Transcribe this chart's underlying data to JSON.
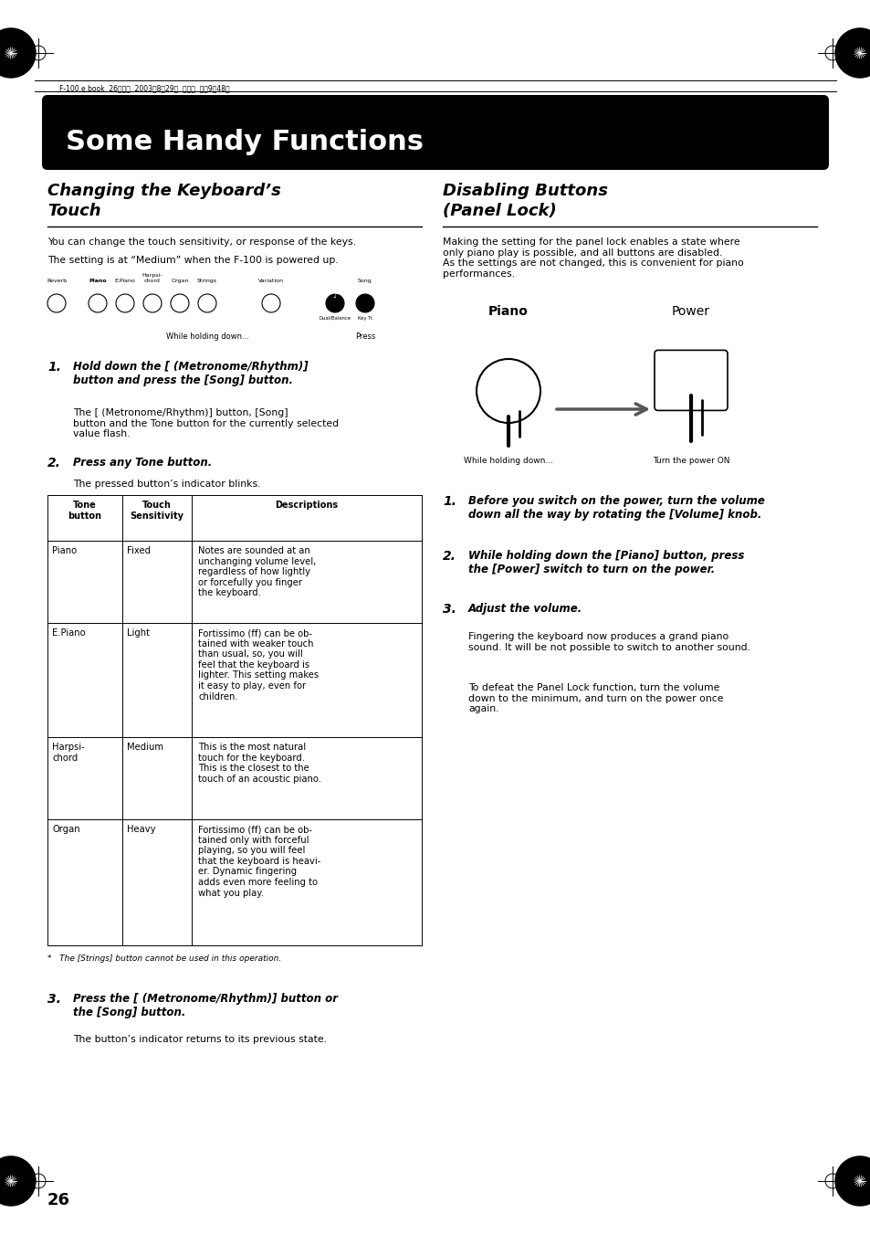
{
  "bg_color": "#ffffff",
  "title_bar_color": "#000000",
  "title_bar_text": "Some Handy Functions",
  "title_bar_text_color": "#ffffff",
  "section1_title_line1": "Changing the Keyboard’s",
  "section1_title_line2": "Touch",
  "section2_title_line1": "Disabling Buttons",
  "section2_title_line2": "(Panel Lock)",
  "header_text": "F-100.e.book  26ページ  2003年8月29日  金曜日  午前9晈48分",
  "page_number": "26",
  "section1_intro1": "You can change the touch sensitivity, or response of the keys.",
  "section1_intro2": "The setting is at “Medium” when the F-100 is powered up.",
  "step1_head": "Hold down the [  (Metronome/Rhythm)]\nbutton and press the [Song] button.",
  "step1_sub": "The [  (Metronome/Rhythm)] button, [Song]\nbutton and the Tone button for the currently selected\nvalue flash.",
  "step2_head": "Press any Tone button.",
  "step2_sub": "The pressed button’s indicator blinks.",
  "step3_head": "Press the [  (Metronome/Rhythm)] button or\nthe [Song] button.",
  "step3_sub": "The button’s indicator returns to its previous state.",
  "footnote": "*   The [Strings] button cannot be used in this operation.",
  "section2_intro": "Making the setting for the panel lock enables a state where\nonly piano play is possible, and all buttons are disabled.\nAs the settings are not changed, this is convenient for piano\nperformances.",
  "r_step1_head": "Before you switch on the power, turn the volume\ndown all the way by rotating the [Volume] knob.",
  "r_step2_head": "While holding down the [Piano] button, press\nthe [Power] switch to turn on the power.",
  "r_step3_head": "Adjust the volume.",
  "r_step3_sub": "Fingering the keyboard now produces a grand piano\nsound. It will be not possible to switch to another sound.",
  "r_defeat": "To defeat the Panel Lock function, turn the volume\ndown to the minimum, and turn on the power once\nagain.",
  "table_col0_header": "Tone\nbutton",
  "table_col1_header": "Touch\nSensitivity",
  "table_col2_header": "Descriptions",
  "table_rows": [
    [
      "Piano",
      "Fixed",
      "Notes are sounded at an\nunchanging volume level,\nregardless of how lightly\nor forcefully you finger\nthe keyboard."
    ],
    [
      "E.Piano",
      "Light",
      "Fortissimo (ff) can be ob-\ntained with weaker touch\nthan usual, so, you will\nfeel that the keyboard is\nlighter. This setting makes\nit easy to play, even for\nchildren."
    ],
    [
      "Harpsi-\nchord",
      "Medium",
      "This is the most natural\ntouch for the keyboard.\nThis is the closest to the\ntouch of an acoustic piano."
    ],
    [
      "Organ",
      "Heavy",
      "Fortissimo (ff) can be ob-\ntained only with forceful\nplaying, so you will feel\nthat the keyboard is heavi-\ner. Dynamic fingering\nadds even more feeling to\nwhat you play."
    ]
  ],
  "piano_label": "Piano",
  "power_label": "Power",
  "while_holding": "While holding down...",
  "turn_power_on": "Turn the power ON"
}
